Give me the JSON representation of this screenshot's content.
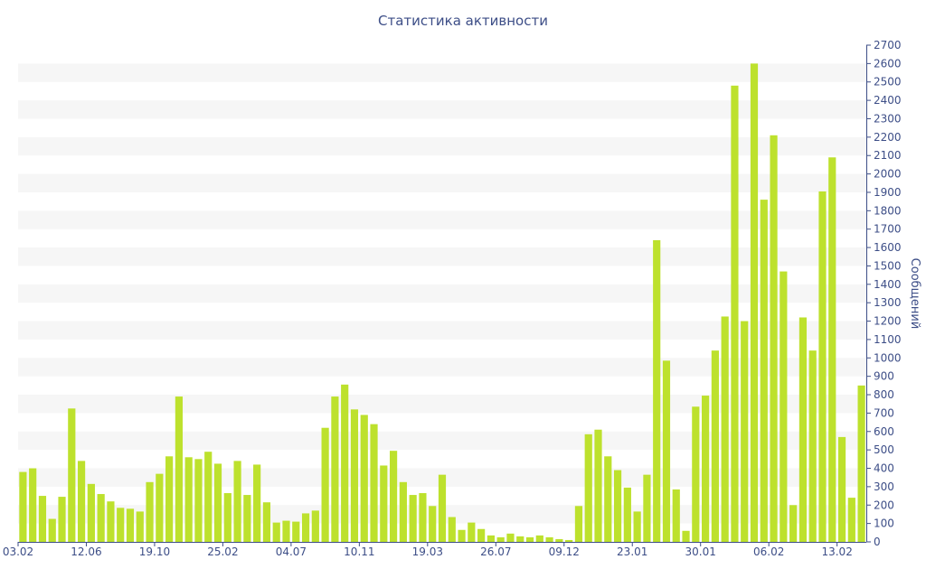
{
  "chart_data": {
    "type": "bar",
    "title": "Статистика активности",
    "xlabel": "",
    "ylabel": "Сообщений",
    "ylim": [
      0,
      2700
    ],
    "ytick_step": 100,
    "grid": "alternating horizontal bands",
    "x_tick_labels": [
      {
        "label": "03.02",
        "index": 0
      },
      {
        "label": "12.06",
        "index": 7
      },
      {
        "label": "19.10",
        "index": 14
      },
      {
        "label": "25.02",
        "index": 21
      },
      {
        "label": "04.07",
        "index": 28
      },
      {
        "label": "10.11",
        "index": 35
      },
      {
        "label": "19.03",
        "index": 42
      },
      {
        "label": "26.07",
        "index": 49
      },
      {
        "label": "09.12",
        "index": 56
      },
      {
        "label": "23.01",
        "index": 63
      },
      {
        "label": "30.01",
        "index": 70
      },
      {
        "label": "06.02",
        "index": 77
      },
      {
        "label": "13.02",
        "index": 84
      }
    ],
    "values": [
      380,
      400,
      250,
      125,
      245,
      725,
      440,
      315,
      260,
      220,
      185,
      180,
      165,
      325,
      370,
      465,
      790,
      460,
      450,
      490,
      425,
      265,
      440,
      255,
      420,
      215,
      105,
      115,
      110,
      155,
      170,
      620,
      790,
      855,
      720,
      690,
      640,
      415,
      495,
      325,
      255,
      265,
      195,
      365,
      135,
      65,
      105,
      70,
      35,
      25,
      45,
      30,
      25,
      35,
      25,
      15,
      10,
      195,
      585,
      610,
      465,
      390,
      295,
      165,
      365,
      1640,
      985,
      285,
      60,
      735,
      795,
      1040,
      1225,
      2480,
      1200,
      2600,
      1860,
      2210,
      1470,
      200,
      1220,
      1040,
      1905,
      2090,
      570,
      240,
      850
    ],
    "colors": {
      "bar": "#bde12d",
      "band": "#f6f6f6",
      "axis": "#3d4e87",
      "text": "#3d4e87"
    }
  }
}
